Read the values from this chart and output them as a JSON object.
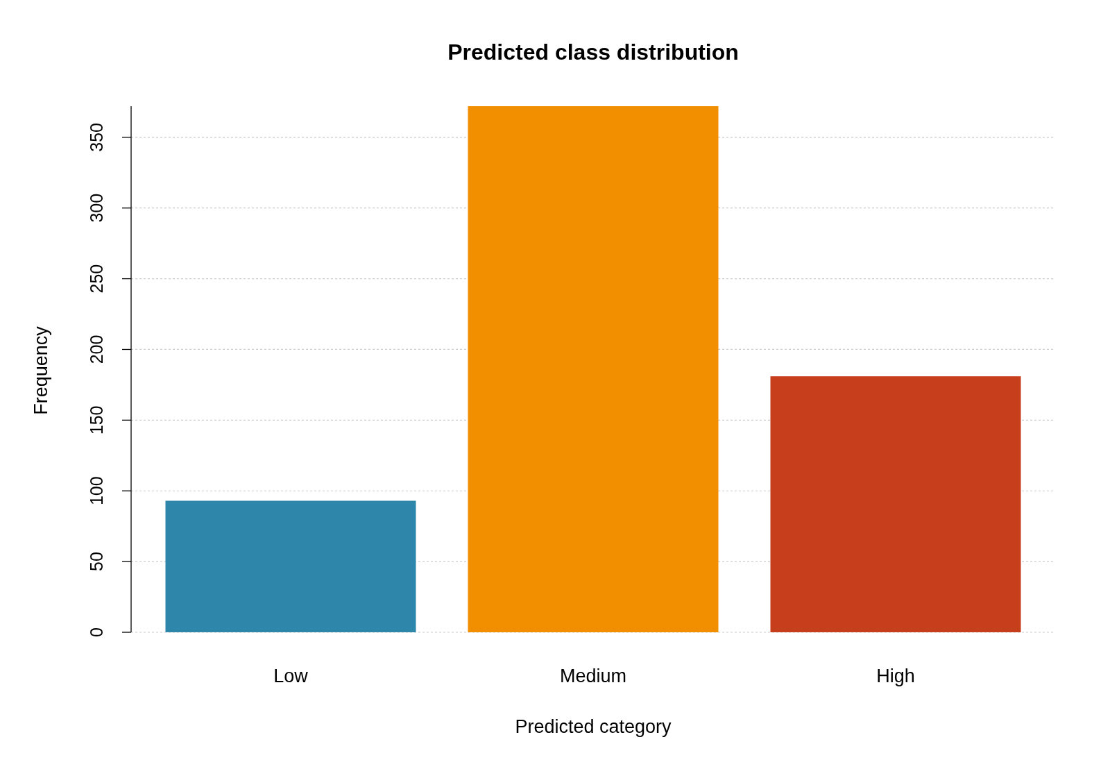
{
  "chart_data": {
    "type": "bar",
    "title": "Predicted class distribution",
    "xlabel": "Predicted category",
    "ylabel": "Frequency",
    "categories": [
      "Low",
      "Medium",
      "High"
    ],
    "values": [
      93,
      372,
      181
    ],
    "colors": [
      "#2e86ab",
      "#f18f01",
      "#c73e1d"
    ],
    "ylim": [
      0,
      372
    ],
    "yticks": [
      0,
      50,
      100,
      150,
      200,
      250,
      300,
      350
    ],
    "grid": "y"
  }
}
